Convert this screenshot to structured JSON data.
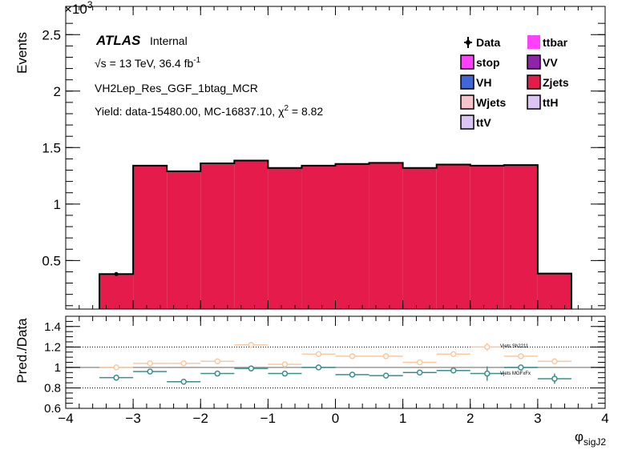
{
  "header": {
    "atlas": "ATLAS",
    "internal": "Internal",
    "energy_lumi": "√s = 13 TeV, 36.4 fb",
    "lumi_exp": "-1",
    "region": "VH2Lep_Res_GGF_1btag_MCR",
    "yield_text": "Yield: data-15480.00, MC-16837.10, χ",
    "chi_exp": "2",
    "chi_val": " = 8.82"
  },
  "axes": {
    "y_title": "Events",
    "y_multiplier": "×10",
    "y_multiplier_exp": "3",
    "ratio_y_title": "Pred./Data",
    "x_title": "φ",
    "x_title_sub": "sigJ2"
  },
  "legend": [
    {
      "label": "Data",
      "color": "#000000",
      "type": "marker"
    },
    {
      "label": "ttbar",
      "color": "#ff40ff",
      "type": "box"
    },
    {
      "label": "stop",
      "color": "#ff40ff",
      "type": "box"
    },
    {
      "label": "VV",
      "color": "#8e24aa",
      "type": "box"
    },
    {
      "label": "VH",
      "color": "#4166d9",
      "type": "box"
    },
    {
      "label": "Zjets",
      "color": "#e41b4b",
      "type": "box"
    },
    {
      "label": "Wjets",
      "color": "#f7c4cc",
      "type": "box"
    },
    {
      "label": "ttH",
      "color": "#dcc4f5",
      "type": "box"
    },
    {
      "label": "ttV",
      "color": "#dcc4f5",
      "type": "box"
    }
  ],
  "ratio_labels": {
    "sh": "Vjets Sh2211",
    "mg": "Vjets MGFxFx"
  },
  "chart_data": [
    {
      "type": "bar",
      "title": "",
      "xlabel": "φ sigJ2",
      "ylabel": "Events",
      "xlim": [
        -4,
        4
      ],
      "ylim": [
        0.07,
        2.75
      ],
      "y_scale_note": "×10^3",
      "bin_edges": [
        -3.5,
        -3.0,
        -2.5,
        -2.0,
        -1.5,
        -1.0,
        -0.5,
        0.0,
        0.5,
        1.0,
        1.5,
        2.0,
        2.5,
        3.0,
        3.5
      ],
      "series": [
        {
          "name": "Zjets",
          "values": [
            0.38,
            1.34,
            1.29,
            1.36,
            1.385,
            1.32,
            1.34,
            1.355,
            1.365,
            1.32,
            1.35,
            1.34,
            1.345,
            0.385
          ]
        }
      ],
      "data_points": [
        {
          "x": -3.25,
          "y": 0.38
        }
      ],
      "x_ticks": [
        -4,
        -3,
        -2,
        -1,
        0,
        1,
        2,
        3,
        4
      ],
      "x_tick_labels": [
        "−4",
        "−3",
        "−2",
        "−1",
        "0",
        "1",
        "2",
        "3",
        "4"
      ],
      "y_ticks": [
        0.5,
        1.0,
        1.5,
        2.0,
        2.5
      ],
      "y_tick_labels": [
        "0.5",
        "1",
        "1.5",
        "2",
        "2.5"
      ]
    },
    {
      "type": "scatter",
      "title": "",
      "ylabel": "Pred./Data",
      "xlim": [
        -4,
        4
      ],
      "ylim": [
        0.6,
        1.5
      ],
      "y_ticks": [
        0.6,
        0.8,
        1.0,
        1.2,
        1.4
      ],
      "y_tick_labels": [
        "0.6",
        "0.8",
        "1",
        "1.2",
        "1.4"
      ],
      "dotted_lines": [
        0.8,
        1.2
      ],
      "reference_line": 1.0,
      "x_bins": [
        -3.25,
        -2.75,
        -2.25,
        -1.75,
        -1.25,
        -0.75,
        -0.25,
        0.25,
        0.75,
        1.25,
        1.75,
        2.25,
        2.75,
        3.25
      ],
      "series": [
        {
          "name": "Vjets Sh2211",
          "color": "#f9c9a0",
          "values": [
            1.0,
            1.04,
            1.04,
            1.06,
            1.22,
            1.03,
            1.13,
            1.11,
            1.11,
            1.05,
            1.13,
            1.2,
            1.11,
            1.06
          ],
          "err": [
            0.0,
            0.0,
            0.0,
            0.0,
            0.0,
            0.0,
            0.0,
            0.0,
            0.0,
            0.0,
            0.0,
            0.04,
            0.0,
            0.0
          ]
        },
        {
          "name": "Vjets MGFxFx",
          "color": "#3a8f8c",
          "values": [
            0.9,
            0.96,
            0.86,
            0.94,
            0.99,
            0.94,
            1.0,
            0.93,
            0.92,
            0.95,
            0.97,
            0.94,
            1.0,
            0.89
          ],
          "err": [
            0.03,
            0.0,
            0.0,
            0.0,
            0.0,
            0.0,
            0.0,
            0.0,
            0.0,
            0.0,
            0.0,
            0.07,
            0.0,
            0.05
          ]
        }
      ]
    }
  ]
}
